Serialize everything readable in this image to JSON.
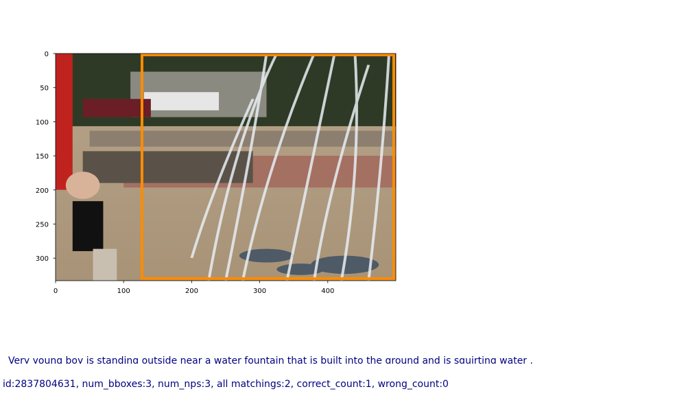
{
  "chart_data": {
    "type": "image",
    "xlim": [
      0,
      500
    ],
    "ylim": [
      333,
      0
    ],
    "xticks": [
      0,
      100,
      200,
      300,
      400
    ],
    "yticks": [
      0,
      50,
      100,
      150,
      200,
      250,
      300
    ],
    "boxes": [
      {
        "color": "#ff8c00",
        "x": [
          127,
          497
        ],
        "y": [
          2,
          330
        ]
      }
    ]
  },
  "caption": "Very young boy   is standing outside near   a   water   fountain   that is built into the ground and is squirting   water   .",
  "info": "id:2837804631, num_bboxes:3, num_nps:3, all matchings:2, correct_count:1, wrong_count:0"
}
